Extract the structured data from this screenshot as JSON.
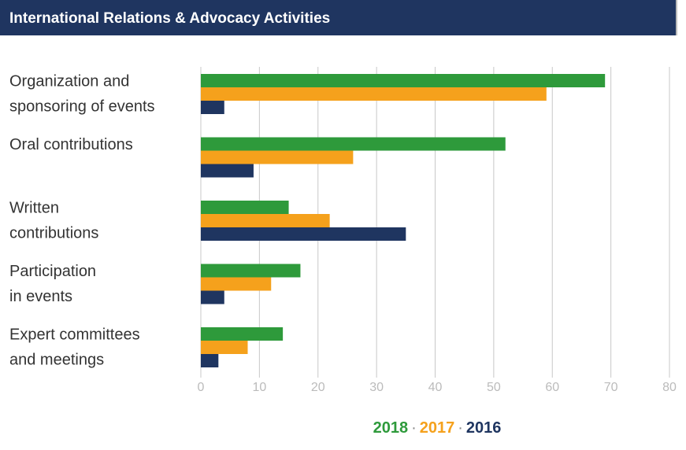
{
  "chart_data": {
    "type": "hbar",
    "title": "International Relations & Advocacy Activities",
    "categories": [
      [
        "Organization and",
        "sponsoring of events"
      ],
      [
        "Oral contributions"
      ],
      [
        "Written",
        "contributions"
      ],
      [
        "Participation",
        "in events"
      ],
      [
        "Expert committees",
        "and meetings"
      ]
    ],
    "series": [
      {
        "name": "2018",
        "color": "#2e9a3b",
        "values": [
          69,
          52,
          15,
          17,
          14
        ]
      },
      {
        "name": "2017",
        "color": "#f5a11c",
        "values": [
          59,
          26,
          22,
          12,
          8
        ]
      },
      {
        "name": "2016",
        "color": "#1f3560",
        "values": [
          4,
          9,
          35,
          4,
          3
        ]
      }
    ],
    "legend_separator": "·",
    "xlim": [
      0,
      80
    ],
    "xticks": [
      0,
      10,
      20,
      30,
      40,
      50,
      60,
      70,
      80
    ],
    "grid": true
  }
}
